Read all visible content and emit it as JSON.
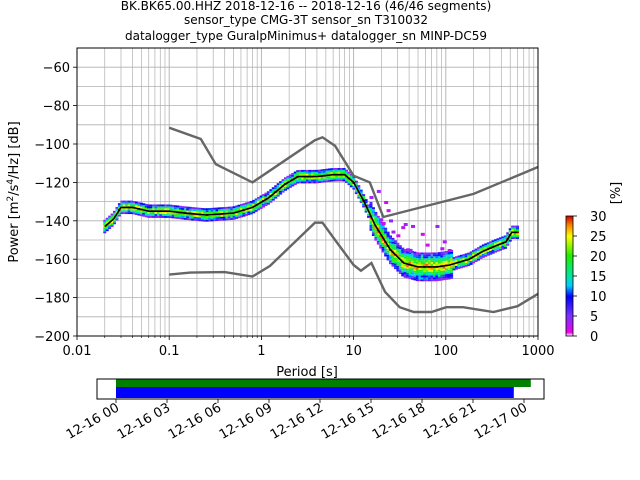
{
  "title": {
    "line1": "BK.BK65.00.HHZ   2018-12-16 -- 2018-12-16  (46/46 segments)",
    "line2": "sensor_type CMG-3T sensor_sn T310032",
    "line3": "datalogger_type GuralpMinimus+ datalogger_sn MINP-DC59"
  },
  "chart_data": [
    {
      "type": "heatmap",
      "xlabel": "Period [s]",
      "ylabel": "Power [m²/s⁴/Hz] [dB]",
      "x_scale": "log",
      "xlim": [
        0.01,
        1000
      ],
      "ylim": [
        -200,
        -50
      ],
      "grid": true,
      "x_ticks": [
        "0.01",
        "0.1",
        "1",
        "10",
        "100",
        "1000"
      ],
      "y_ticks": [
        "-200",
        "-180",
        "-160",
        "-140",
        "-120",
        "-100",
        "-80",
        "-60"
      ],
      "colorbar": {
        "label": "[%]",
        "range": [
          0,
          30
        ],
        "ticks": [
          "0",
          "5",
          "10",
          "15",
          "20",
          "25",
          "30"
        ]
      },
      "series": [
        {
          "role": "noise-model-high",
          "color": "#666666",
          "points": [
            [
              0.1,
              -91.5
            ],
            [
              0.22,
              -97.4
            ],
            [
              0.32,
              -110.5
            ],
            [
              0.8,
              -120
            ],
            [
              3.8,
              -98
            ],
            [
              4.6,
              -96.5
            ],
            [
              6.3,
              -101
            ],
            [
              10,
              -116.5
            ],
            [
              15,
              -120
            ],
            [
              21,
              -138
            ],
            [
              200,
              -126
            ],
            [
              1000,
              -112
            ]
          ]
        },
        {
          "role": "noise-model-low",
          "color": "#666666",
          "points": [
            [
              0.1,
              -168
            ],
            [
              0.17,
              -167
            ],
            [
              0.4,
              -166.7
            ],
            [
              0.8,
              -169
            ],
            [
              1.24,
              -163.5
            ],
            [
              3.8,
              -141
            ],
            [
              4.6,
              -141
            ],
            [
              6.3,
              -150
            ],
            [
              10,
              -163
            ],
            [
              12,
              -166
            ],
            [
              15.6,
              -162
            ],
            [
              21.9,
              -177
            ],
            [
              31.6,
              -185
            ],
            [
              45,
              -187.5
            ],
            [
              70,
              -187.5
            ],
            [
              101,
              -185
            ],
            [
              154,
              -185
            ],
            [
              328,
              -187.5
            ],
            [
              600,
              -184.5
            ],
            [
              1000,
              -178
            ]
          ]
        },
        {
          "role": "mean",
          "color": "#000000",
          "points": [
            [
              0.02,
              -143
            ],
            [
              0.025,
              -139
            ],
            [
              0.03,
              -133
            ],
            [
              0.04,
              -133
            ],
            [
              0.06,
              -135
            ],
            [
              0.1,
              -135
            ],
            [
              0.15,
              -136
            ],
            [
              0.25,
              -137
            ],
            [
              0.5,
              -136
            ],
            [
              0.8,
              -133
            ],
            [
              1.2,
              -128
            ],
            [
              1.8,
              -121
            ],
            [
              2.5,
              -117
            ],
            [
              4,
              -117
            ],
            [
              6,
              -116
            ],
            [
              8,
              -116
            ],
            [
              10,
              -120
            ],
            [
              13,
              -130
            ],
            [
              17,
              -142
            ],
            [
              25,
              -155
            ],
            [
              35,
              -162
            ],
            [
              50,
              -164
            ],
            [
              80,
              -164
            ],
            [
              110,
              -163
            ],
            [
              180,
              -160
            ],
            [
              250,
              -156
            ],
            [
              350,
              -153
            ],
            [
              450,
              -151
            ],
            [
              520,
              -146
            ],
            [
              600,
              -146
            ]
          ]
        }
      ]
    },
    {
      "type": "timeline",
      "xlim": [
        "12-16 00",
        "12-17 00"
      ],
      "x_ticks": [
        "12-16 00",
        "12-16 03",
        "12-16 06",
        "12-16 09",
        "12-16 12",
        "12-16 15",
        "12-16 18",
        "12-16 21",
        "12-17 00"
      ],
      "bars": [
        {
          "color": "#008000",
          "start_hours": 0.0,
          "end_hours": 24.4
        },
        {
          "color": "#0000ff",
          "start_hours": 0.0,
          "end_hours": 23.4
        }
      ]
    }
  ]
}
